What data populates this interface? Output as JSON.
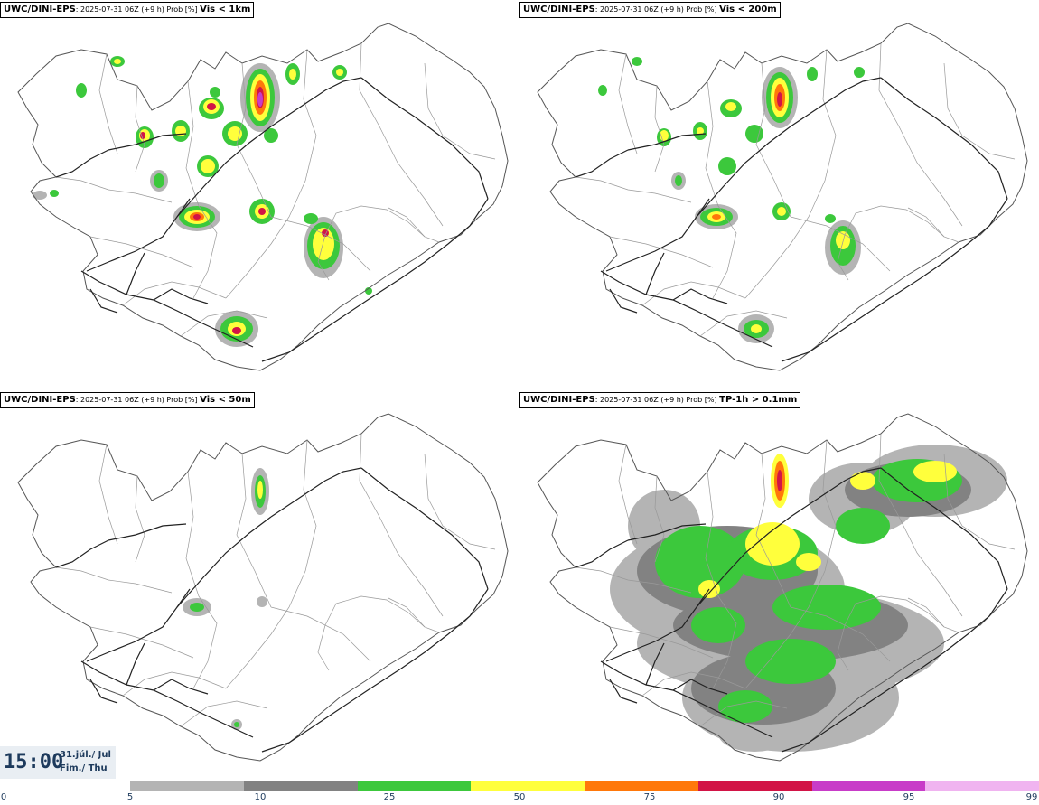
{
  "panels": [
    {
      "model": "UWC/DINI-EPS",
      "meta": ": 2025-07-31 06Z (+9 h) Prob [%] ",
      "variable": "Vis < 1km"
    },
    {
      "model": "UWC/DINI-EPS",
      "meta": ": 2025-07-31 06Z (+9 h) Prob [%] ",
      "variable": "Vis < 200m"
    },
    {
      "model": "UWC/DINI-EPS",
      "meta": ": 2025-07-31 06Z (+9 h) Prob [%] ",
      "variable": "Vis < 50m"
    },
    {
      "model": "UWC/DINI-EPS",
      "meta": ": 2025-07-31 06Z (+9 h) Prob [%] ",
      "variable": "TP-1h > 0.1mm"
    }
  ],
  "valid_time": {
    "time": "15:00",
    "date": "31.júl./ Jul",
    "weekday": "Fim./ Thu"
  },
  "legend": {
    "ticks": [
      "0",
      "5",
      "10",
      "25",
      "50",
      "75",
      "90",
      "95",
      "99"
    ],
    "colors": [
      "#b4b4b4",
      "#828282",
      "#3cc83c",
      "#ffff3c",
      "#ff780a",
      "#d21446",
      "#c83cc8",
      "#f0b4f0"
    ]
  }
}
